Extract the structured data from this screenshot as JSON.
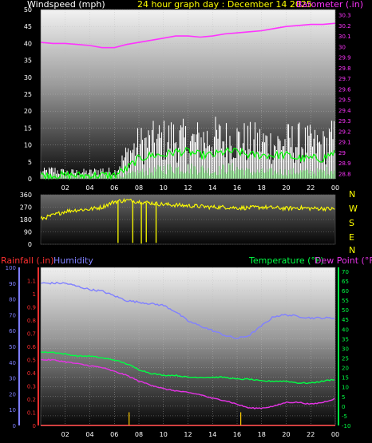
{
  "colors": {
    "background": "#000000",
    "wind_label": "#ffffff",
    "header": "#ffff00",
    "barometer": "#ff33ff",
    "direction": "#ffff00",
    "rainfall": "#ff3030",
    "humidity": "#8080ff",
    "temperature": "#00ff44",
    "dewpoint": "#e633e6",
    "rain_bars": "#ffcc00"
  },
  "header": {
    "wind_label": "Windspeed (mph)",
    "title": "24 hour graph day : December 14 2025",
    "baro_label": "Barometer (.in)"
  },
  "bottom_labels": {
    "rainfall": "Rainfall (.in)",
    "humidity": "Humidity",
    "temperature": "Temperature (°F)",
    "dewpoint": "Dew Point (°F)"
  },
  "chart_data": [
    {
      "type": "line",
      "name": "wind-barometer",
      "x_ticks": [
        "02",
        "04",
        "06",
        "08",
        "10",
        "12",
        "14",
        "16",
        "18",
        "20",
        "22",
        "00"
      ],
      "x": [
        0,
        1,
        2,
        3,
        4,
        5,
        6,
        7,
        8,
        9,
        10,
        11,
        12,
        13,
        14,
        15,
        16,
        17,
        18,
        19,
        20,
        21,
        22,
        23,
        24
      ],
      "ylim": [
        0,
        50
      ],
      "y_ticks": [
        "0",
        "5",
        "10",
        "15",
        "20",
        "25",
        "30",
        "35",
        "40",
        "45",
        "50"
      ],
      "y2lim": [
        28.75,
        30.35
      ],
      "y2_ticks": [
        "28.8",
        "28.9",
        "29",
        "29.1",
        "29.2",
        "29.3",
        "29.4",
        "29.5",
        "29.6",
        "29.7",
        "29.8",
        "29.9",
        "30",
        "30.1",
        "30.2",
        "30.3"
      ],
      "series": [
        {
          "name": "Barometer (.in)",
          "axis": "right",
          "color": "#ff33ff",
          "values": [
            30.04,
            30.03,
            30.03,
            30.02,
            30.01,
            29.99,
            29.99,
            30.02,
            30.04,
            30.06,
            30.08,
            30.1,
            30.1,
            30.09,
            30.1,
            30.12,
            30.13,
            30.14,
            30.15,
            30.17,
            30.19,
            30.2,
            30.21,
            30.21,
            30.22
          ]
        },
        {
          "name": "gust",
          "axis": "left",
          "color": "#ffffff",
          "values": [
            3,
            4,
            3,
            3,
            3,
            4,
            3,
            11,
            16,
            17,
            18,
            19,
            17,
            18,
            19,
            18,
            18,
            17,
            17,
            16,
            17,
            17,
            16,
            15,
            19
          ]
        },
        {
          "name": "average",
          "axis": "left",
          "color": "#00ff00",
          "values": [
            1,
            1,
            1,
            1,
            1,
            1,
            1,
            3,
            6,
            7,
            7,
            8,
            8,
            7,
            7,
            8,
            8,
            7,
            7,
            7,
            7,
            6,
            6,
            6,
            8
          ]
        },
        {
          "name": "wind",
          "axis": "left",
          "color": "#aaffaa",
          "values": [
            1,
            1,
            1,
            1,
            1,
            1,
            1,
            1,
            2,
            2,
            3,
            3,
            3,
            3,
            2,
            3,
            3,
            2,
            2,
            2,
            2,
            2,
            2,
            2,
            3
          ]
        }
      ]
    },
    {
      "type": "line",
      "name": "wind-direction",
      "x": [
        0,
        1,
        2,
        3,
        4,
        5,
        6,
        7,
        8,
        9,
        10,
        11,
        12,
        13,
        14,
        15,
        16,
        17,
        18,
        19,
        20,
        21,
        22,
        23,
        24
      ],
      "ylim": [
        0,
        360
      ],
      "y_ticks": [
        "0",
        "90",
        "180",
        "270",
        "360"
      ],
      "compass": [
        "N",
        "W",
        "S",
        "E",
        "N"
      ],
      "series": [
        {
          "name": "direction",
          "color": "#ffff00",
          "values": [
            185,
            210,
            240,
            250,
            255,
            270,
            310,
            320,
            310,
            300,
            290,
            285,
            280,
            275,
            270,
            270,
            265,
            265,
            270,
            265,
            260,
            265,
            260,
            260,
            255
          ]
        }
      ],
      "spikes": [
        {
          "x": 6.3,
          "value": 10
        },
        {
          "x": 7.5,
          "value": 10
        },
        {
          "x": 8.2,
          "value": 5
        },
        {
          "x": 8.6,
          "value": 15
        },
        {
          "x": 9.4,
          "value": 10
        }
      ]
    },
    {
      "type": "line",
      "name": "rain-humidity-temperature",
      "x_ticks": [
        "02",
        "04",
        "06",
        "08",
        "10",
        "12",
        "14",
        "16",
        "18",
        "20",
        "22",
        "00"
      ],
      "x": [
        0,
        1,
        2,
        3,
        4,
        5,
        6,
        7,
        8,
        9,
        10,
        11,
        12,
        13,
        14,
        15,
        16,
        17,
        18,
        19,
        20,
        21,
        22,
        23,
        24
      ],
      "rain_ylim": [
        0,
        1.2
      ],
      "rain_ticks": [
        "0",
        "0.1",
        "0.2",
        "0.3",
        "0.4",
        "0.5",
        "0.6",
        "0.7",
        "0.8",
        "0.9",
        "1",
        "1.1"
      ],
      "humidity_ylim": [
        0,
        100
      ],
      "humidity_ticks": [
        "0",
        "10",
        "20",
        "30",
        "40",
        "50",
        "60",
        "70",
        "80",
        "90",
        "100"
      ],
      "temp_ylim": [
        -10,
        72
      ],
      "temp_ticks": [
        "-10",
        "-5",
        "0",
        "5",
        "10",
        "15",
        "20",
        "25",
        "30",
        "35",
        "40",
        "45",
        "50",
        "55",
        "60",
        "65",
        "70"
      ],
      "series": [
        {
          "name": "Humidity",
          "axis": "humidity",
          "color": "#8080ff",
          "values": [
            90,
            90,
            90,
            88,
            86,
            85,
            82,
            79,
            78,
            77,
            76,
            72,
            66,
            63,
            60,
            57,
            55,
            57,
            63,
            69,
            70,
            69,
            68,
            68,
            68
          ]
        },
        {
          "name": "Temperature (°F)",
          "axis": "temp",
          "color": "#00ff44",
          "values": [
            28,
            28,
            27,
            26,
            26,
            25,
            24,
            22,
            19,
            17,
            16,
            16,
            15,
            15,
            15,
            15,
            14,
            14,
            13,
            13,
            13,
            12,
            12,
            13,
            14
          ]
        },
        {
          "name": "Dew Point (°F)",
          "axis": "temp",
          "color": "#e633e6",
          "values": [
            24,
            24,
            23,
            22,
            21,
            20,
            18,
            16,
            13,
            11,
            9,
            8,
            7,
            6,
            4,
            3,
            1,
            -1,
            -1,
            0,
            2,
            2,
            1,
            2,
            4
          ]
        },
        {
          "name": "Rainfall (.in)",
          "axis": "rain",
          "color": "#ff3030",
          "values": [
            0,
            0,
            0,
            0,
            0,
            0,
            0,
            0,
            0,
            0,
            0,
            0,
            0,
            0,
            0,
            0,
            0,
            0,
            0,
            0,
            0,
            0,
            0,
            0,
            0
          ]
        }
      ],
      "rain_bars": [
        {
          "x": 7.2,
          "value": 0.1
        },
        {
          "x": 16.3,
          "value": 0.1
        }
      ]
    }
  ]
}
